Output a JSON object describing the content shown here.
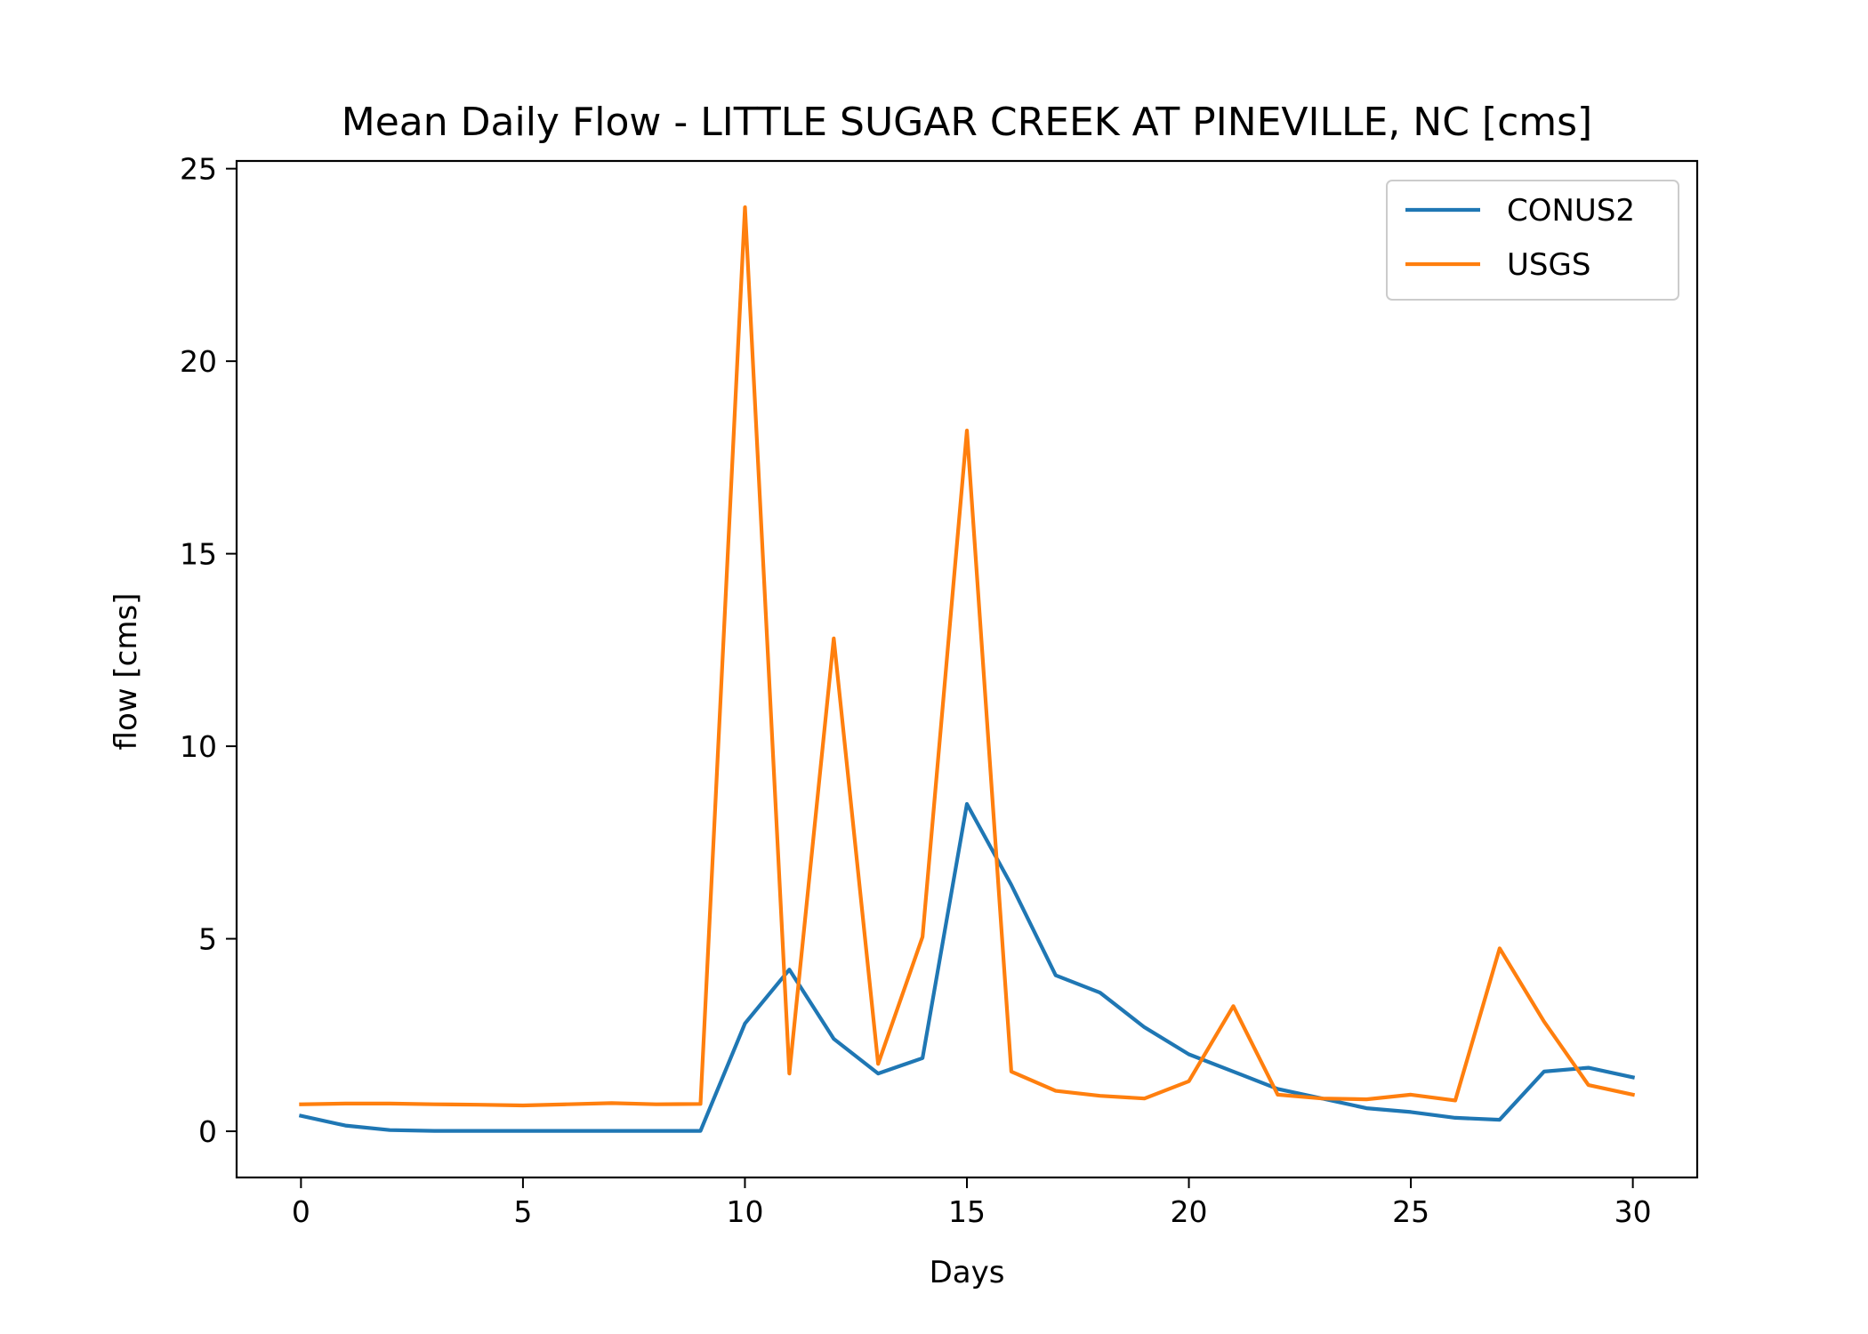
{
  "chart_data": {
    "type": "line",
    "title": "Mean Daily Flow - LITTLE SUGAR CREEK AT PINEVILLE, NC [cms]",
    "xlabel": "Days",
    "ylabel": "flow [cms]",
    "xlim": [
      -1.45,
      31.45
    ],
    "ylim": [
      -1.2,
      25.2
    ],
    "xticks": [
      0,
      5,
      10,
      15,
      20,
      25,
      30
    ],
    "yticks": [
      0,
      5,
      10,
      15,
      20,
      25
    ],
    "grid": false,
    "legend": "top-right",
    "x": [
      0,
      1,
      2,
      3,
      4,
      5,
      6,
      7,
      8,
      9,
      10,
      11,
      12,
      13,
      14,
      15,
      16,
      17,
      18,
      19,
      20,
      21,
      22,
      23,
      24,
      25,
      26,
      27,
      28,
      29,
      30
    ],
    "series": [
      {
        "name": "CONUS2",
        "color": "#1f77b4",
        "values": [
          0.4,
          0.15,
          0.03,
          0.01,
          0.01,
          0.01,
          0.01,
          0.01,
          0.01,
          0.01,
          2.8,
          4.2,
          2.4,
          1.5,
          1.9,
          8.5,
          6.4,
          4.05,
          3.6,
          2.7,
          2.0,
          1.55,
          1.1,
          0.85,
          0.6,
          0.5,
          0.35,
          0.3,
          1.55,
          1.65,
          1.4
        ]
      },
      {
        "name": "USGS",
        "color": "#ff7f0e",
        "values": [
          0.7,
          0.72,
          0.72,
          0.7,
          0.69,
          0.67,
          0.7,
          0.73,
          0.7,
          0.71,
          24.0,
          1.5,
          12.8,
          1.75,
          5.05,
          18.2,
          1.55,
          1.05,
          0.92,
          0.85,
          1.3,
          3.25,
          0.95,
          0.85,
          0.83,
          0.95,
          0.8,
          4.75,
          2.85,
          1.2,
          0.95
        ]
      }
    ]
  }
}
